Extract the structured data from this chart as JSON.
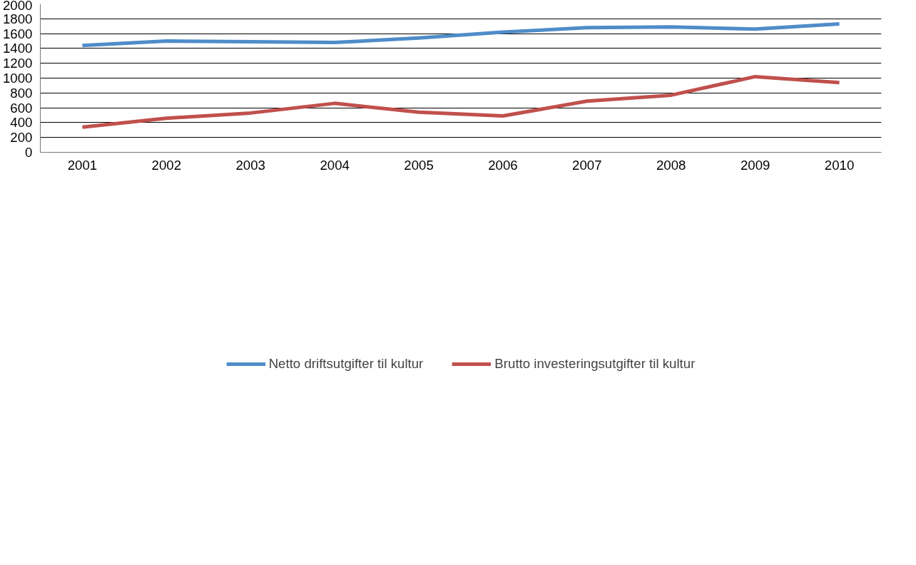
{
  "chart_data": {
    "type": "line",
    "categories": [
      "2001",
      "2002",
      "2003",
      "2004",
      "2005",
      "2006",
      "2007",
      "2008",
      "2009",
      "2010"
    ],
    "series": [
      {
        "name": "Netto driftsutgifter til kultur",
        "color": "#4f8cc9",
        "values": [
          1440,
          1500,
          1490,
          1480,
          1540,
          1620,
          1680,
          1690,
          1660,
          1730
        ]
      },
      {
        "name": "Brutto investeringsutgifter til kultur",
        "color": "#c0504d",
        "values": [
          340,
          460,
          530,
          660,
          540,
          490,
          690,
          770,
          1020,
          940
        ]
      }
    ],
    "ylim": [
      0,
      2000
    ],
    "yticks": [
      0,
      200,
      400,
      600,
      800,
      1000,
      1200,
      1400,
      1600,
      1800,
      2000
    ],
    "grid": "y",
    "legend": "bottom",
    "marker": "none",
    "line_style": "solid"
  }
}
